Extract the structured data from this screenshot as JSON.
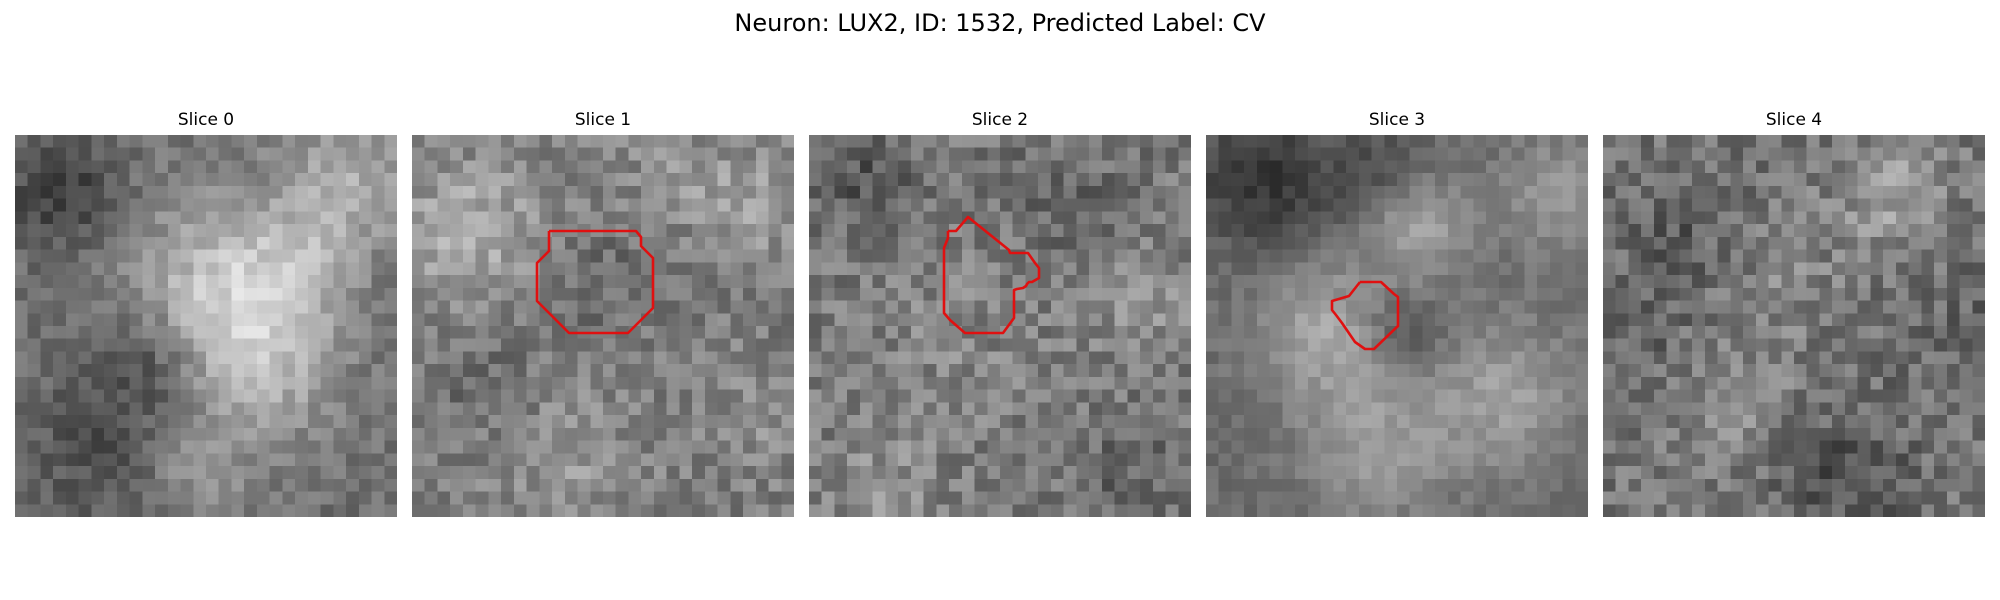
{
  "figure": {
    "title": "Neuron: LUX2, ID: 1532, Predicted Label: CV"
  },
  "colors": {
    "background": "#ffffff",
    "contour": "#e01010",
    "colormap": "gray"
  },
  "panels": [
    {
      "title": "Slice 0",
      "has_contour": false
    },
    {
      "title": "Slice 1",
      "has_contour": true
    },
    {
      "title": "Slice 2",
      "has_contour": true
    },
    {
      "title": "Slice 3",
      "has_contour": true
    },
    {
      "title": "Slice 4",
      "has_contour": false
    }
  ]
}
